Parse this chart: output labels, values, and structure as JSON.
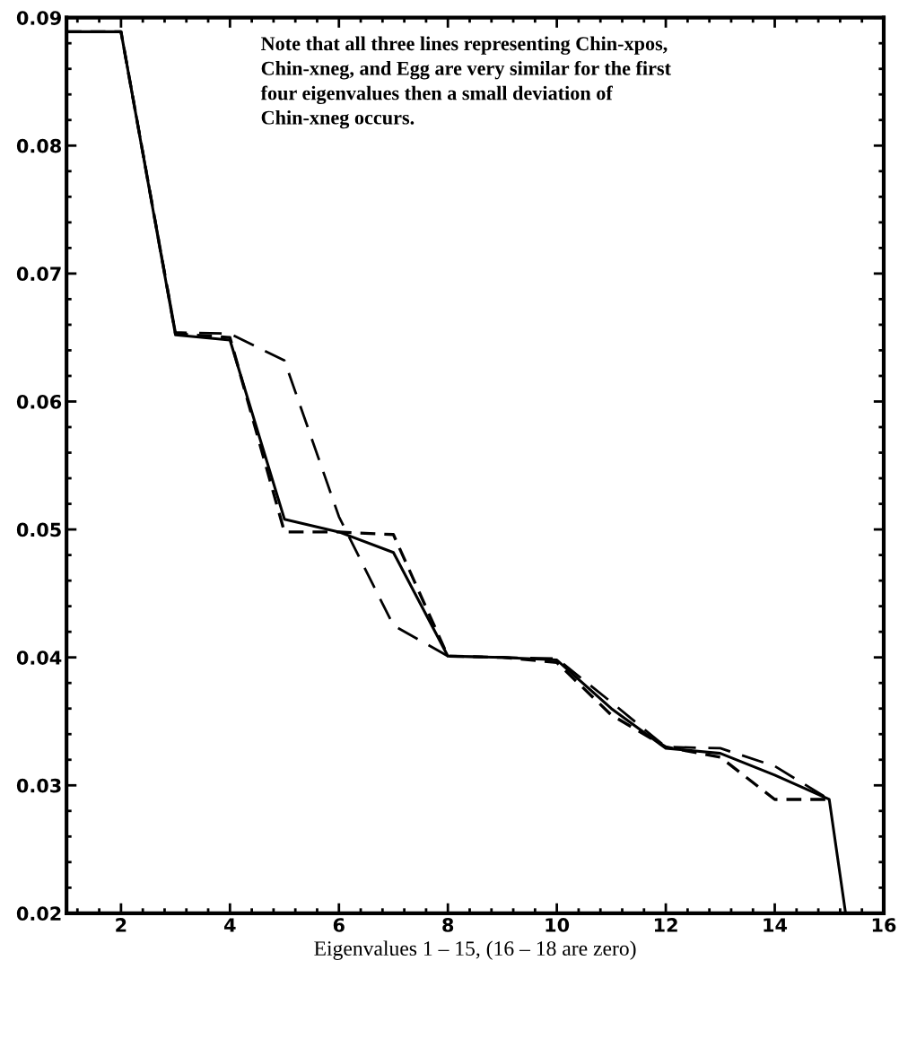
{
  "chart_data": {
    "type": "line",
    "xlabel": "Eigenvalues 1 – 15, (16 – 18 are zero)",
    "annotations": [
      "Note that all three lines representing Chin-xpos, Chin-xneg, and Egg are very similar for the first four eigenvalues then a small deviation of Chin-xneg occurs."
    ],
    "series": [
      {
        "color": "#000000",
        "line_style": "solid",
        "x": [
          1,
          2,
          3,
          4,
          5,
          6,
          7,
          8,
          9,
          10,
          11,
          12,
          13,
          14,
          15,
          15.3
        ],
        "values": [
          0.0889,
          0.0889,
          0.0652,
          0.0648,
          0.0508,
          0.0498,
          0.0482,
          0.0401,
          0.04,
          0.0398,
          0.036,
          0.0329,
          0.0325,
          0.0308,
          0.0289,
          0.02
        ]
      },
      {
        "color": "#000000",
        "line_style": "dashed",
        "x": [
          1,
          2,
          3,
          4,
          5,
          6,
          7,
          8,
          9,
          10,
          11,
          12,
          13,
          14,
          15
        ],
        "values": [
          0.0889,
          0.0889,
          0.0654,
          0.0653,
          0.0632,
          0.051,
          0.0425,
          0.0401,
          0.04,
          0.0399,
          0.0365,
          0.033,
          0.0329,
          0.0315,
          0.0289
        ]
      },
      {
        "color": "#000000",
        "line_style": "dotted",
        "x": [
          1,
          2,
          3,
          4,
          5,
          6,
          7,
          8,
          9,
          10,
          11,
          12,
          13,
          14,
          15
        ],
        "values": [
          0.0889,
          0.0889,
          0.0653,
          0.065,
          0.0498,
          0.0498,
          0.0496,
          0.0401,
          0.04,
          0.0396,
          0.0355,
          0.033,
          0.0322,
          0.0289,
          0.0289
        ]
      }
    ],
    "xlim": [
      1,
      16
    ],
    "xticks": [
      2,
      4,
      6,
      8,
      10,
      12,
      14,
      16
    ],
    "ylim": [
      0.02,
      0.09
    ],
    "yticks": [
      0.02,
      0.03,
      0.04,
      0.05,
      0.06,
      0.07,
      0.08,
      0.09
    ],
    "grid": false,
    "marker": "none"
  }
}
